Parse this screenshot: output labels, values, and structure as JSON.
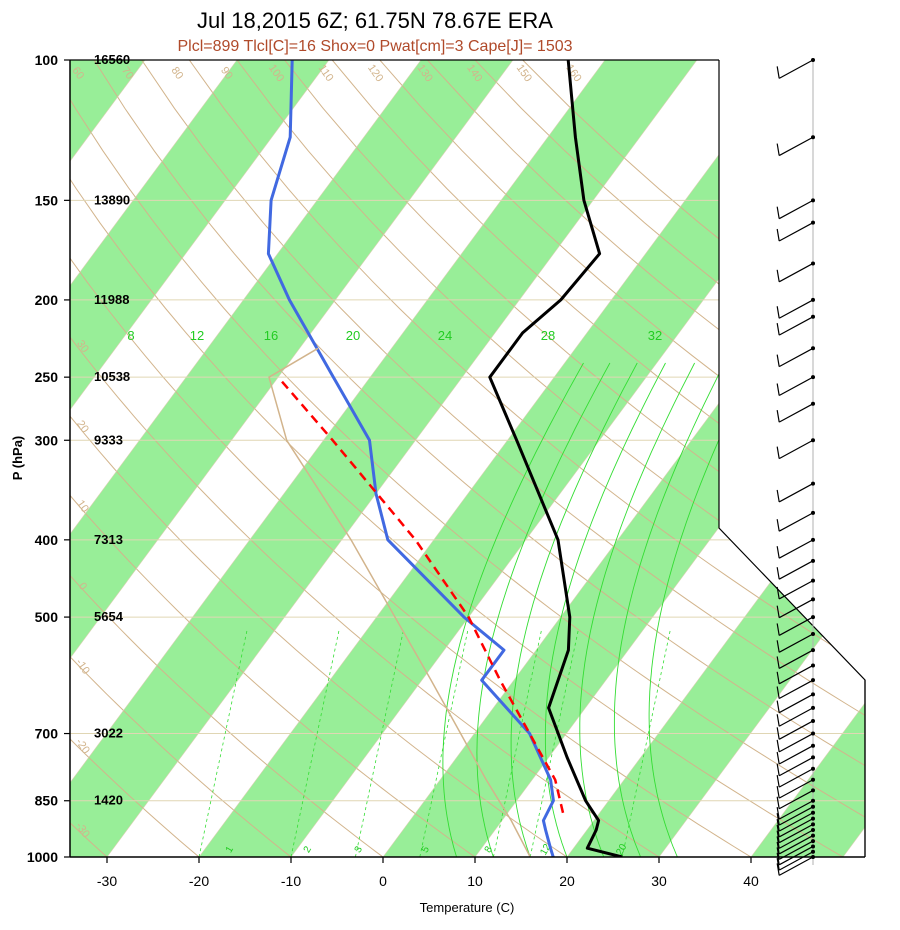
{
  "chart_data": {
    "type": "line",
    "title": "Jul 18,2015 6Z; 61.75N 78.67E ERA",
    "subtitle": "Plcl=899 Tlcl[C]=16 Shox=0 Pwat[cm]=3 Cape[J]= 1503",
    "xlabel": "Temperature (C)",
    "ylabel": "P (hPa)",
    "xlim": [
      -34,
      52
    ],
    "ylim": [
      1000,
      100
    ],
    "yscale": "log",
    "x_ticks": [
      "-30",
      "-20",
      "-10",
      "0",
      "10",
      "20",
      "30",
      "40"
    ],
    "pressure_levels": [
      {
        "p": 100,
        "label": "100",
        "height": "16560"
      },
      {
        "p": 150,
        "label": "150",
        "height": "13890"
      },
      {
        "p": 200,
        "label": "200",
        "height": "11988"
      },
      {
        "p": 250,
        "label": "250",
        "height": "10538"
      },
      {
        "p": 300,
        "label": "300",
        "height": "9333"
      },
      {
        "p": 400,
        "label": "400",
        "height": "7313"
      },
      {
        "p": 500,
        "label": "500",
        "height": "5654"
      },
      {
        "p": 700,
        "label": "700",
        "height": "3022"
      },
      {
        "p": 850,
        "label": "850",
        "height": "1420"
      },
      {
        "p": 1000,
        "label": "1000",
        "height": ""
      }
    ],
    "isotherm_labels": [
      "-30",
      "-20",
      "-10",
      "0",
      "10",
      "20",
      "30"
    ],
    "dry_adiabat_labels": [
      "-30",
      "-20",
      "-10",
      "0",
      "10",
      "20",
      "30",
      "40",
      "50",
      "60",
      "70",
      "80",
      "90",
      "100",
      "110",
      "120",
      "130",
      "140",
      "150",
      "160"
    ],
    "moist_adiabat_labels": [
      "8",
      "12",
      "16",
      "20",
      "24",
      "28",
      "32"
    ],
    "mixing_ratio_labels": [
      "1",
      "2",
      "3",
      "5",
      "8",
      "12",
      "20"
    ],
    "series": [
      {
        "role": "temperature",
        "color": "#000000",
        "points": [
          {
            "p": 1000,
            "t": 26
          },
          {
            "p": 975,
            "t": 21.5
          },
          {
            "p": 925,
            "t": 21
          },
          {
            "p": 900,
            "t": 20.5
          },
          {
            "p": 850,
            "t": 17.5
          },
          {
            "p": 750,
            "t": 12
          },
          {
            "p": 650,
            "t": 6
          },
          {
            "p": 550,
            "t": 3.5
          },
          {
            "p": 500,
            "t": 1
          },
          {
            "p": 400,
            "t": -6.5
          },
          {
            "p": 300,
            "t": -19
          },
          {
            "p": 250,
            "t": -27
          },
          {
            "p": 220,
            "t": -27
          },
          {
            "p": 200,
            "t": -25.5
          },
          {
            "p": 175,
            "t": -25
          },
          {
            "p": 150,
            "t": -31
          },
          {
            "p": 125,
            "t": -37
          },
          {
            "p": 100,
            "t": -44
          }
        ]
      },
      {
        "role": "dewpoint",
        "color": "#4169e1",
        "points": [
          {
            "p": 1000,
            "t": 18.5
          },
          {
            "p": 975,
            "t": 17.5
          },
          {
            "p": 925,
            "t": 15.5
          },
          {
            "p": 900,
            "t": 14.5
          },
          {
            "p": 850,
            "t": 14
          },
          {
            "p": 800,
            "t": 12
          },
          {
            "p": 700,
            "t": 6
          },
          {
            "p": 600,
            "t": -3.5
          },
          {
            "p": 550,
            "t": -3.5
          },
          {
            "p": 500,
            "t": -10.5
          },
          {
            "p": 400,
            "t": -25
          },
          {
            "p": 350,
            "t": -30
          },
          {
            "p": 300,
            "t": -35
          },
          {
            "p": 250,
            "t": -44
          },
          {
            "p": 200,
            "t": -55
          },
          {
            "p": 175,
            "t": -61
          },
          {
            "p": 150,
            "t": -65
          },
          {
            "p": 125,
            "t": -68
          },
          {
            "p": 100,
            "t": -74
          }
        ]
      },
      {
        "role": "parcel",
        "color": "#ff0000",
        "style": "dashed",
        "points": [
          {
            "p": 880,
            "t": 16
          },
          {
            "p": 800,
            "t": 12.5
          },
          {
            "p": 700,
            "t": 6
          },
          {
            "p": 600,
            "t": -1.5
          },
          {
            "p": 500,
            "t": -10
          },
          {
            "p": 400,
            "t": -22
          },
          {
            "p": 300,
            "t": -39
          },
          {
            "p": 250,
            "t": -50
          }
        ]
      },
      {
        "role": "lcl-path",
        "color": "#d2b48c",
        "points": [
          {
            "p": 1000,
            "t": 16
          },
          {
            "p": 900,
            "t": 11
          },
          {
            "p": 800,
            "t": 5
          },
          {
            "p": 700,
            "t": -1.5
          },
          {
            "p": 600,
            "t": -9
          },
          {
            "p": 500,
            "t": -18
          },
          {
            "p": 400,
            "t": -29
          },
          {
            "p": 300,
            "t": -44
          },
          {
            "p": 250,
            "t": -51
          },
          {
            "p": 230,
            "t": -48
          }
        ]
      }
    ],
    "wind_pressures": [
      1000,
      985,
      970,
      955,
      940,
      925,
      910,
      895,
      880,
      865,
      850,
      825,
      800,
      775,
      750,
      725,
      700,
      675,
      650,
      625,
      600,
      575,
      550,
      525,
      500,
      475,
      450,
      425,
      400,
      370,
      340,
      300,
      270,
      250,
      230,
      210,
      200,
      180,
      160,
      150,
      125,
      100
    ]
  }
}
